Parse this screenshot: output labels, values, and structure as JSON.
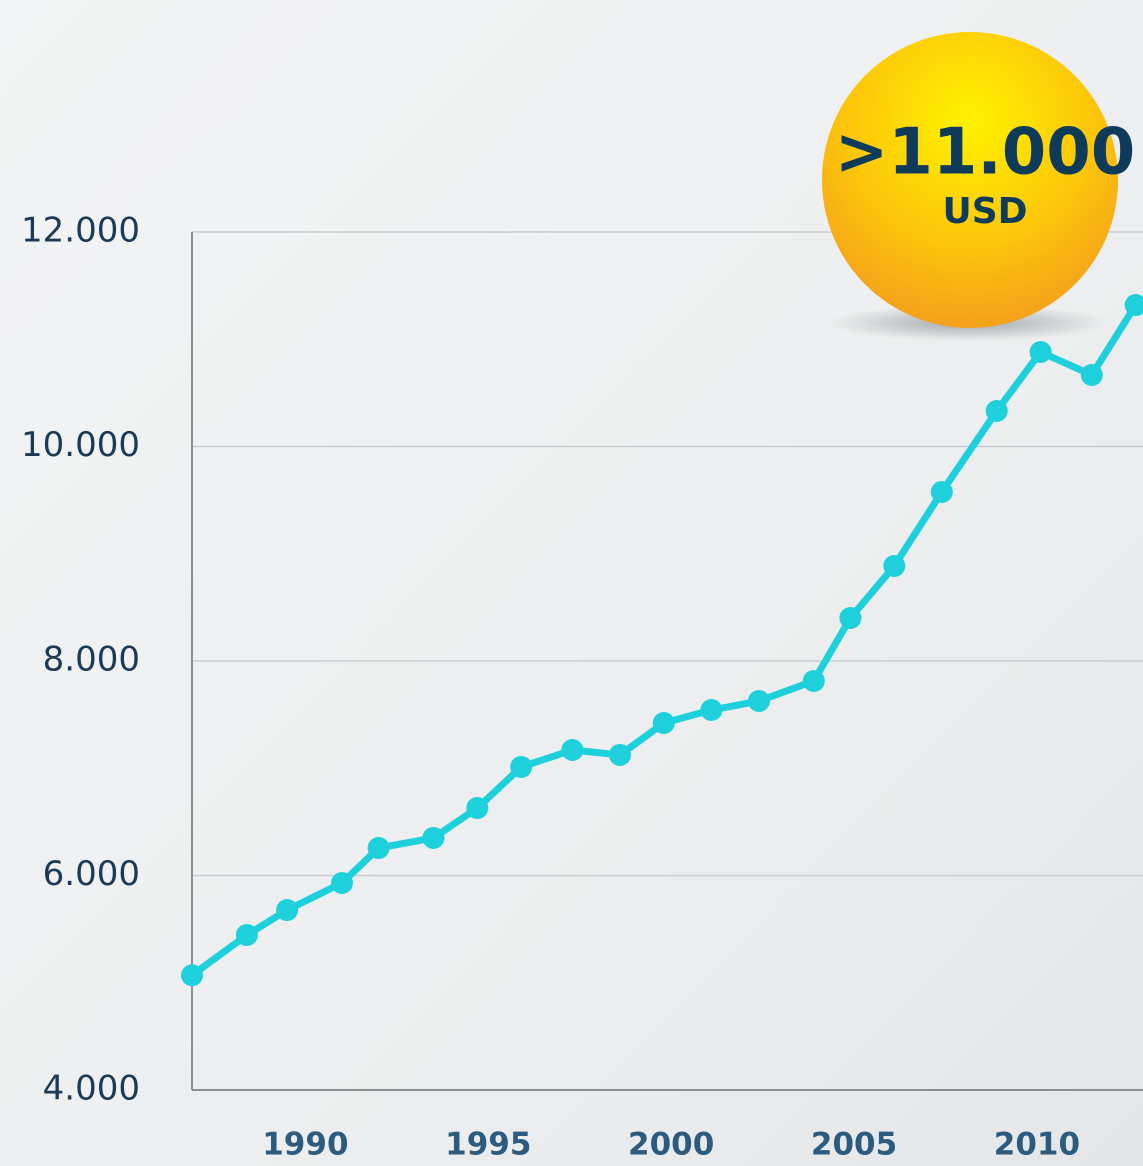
{
  "chart_data": {
    "type": "line",
    "annotation": ">11.000",
    "annotation_unit": "USD",
    "x": [
      1986.9,
      1988.4,
      1989.5,
      1991.0,
      1992.0,
      1993.5,
      1994.7,
      1995.9,
      1997.3,
      1998.6,
      1999.8,
      2001.1,
      2002.4,
      2003.9,
      2004.9,
      2006.1,
      2007.4,
      2008.9,
      2010.1,
      2011.5,
      2012.7
    ],
    "series": [
      {
        "color": "#1ed0dc",
        "values": [
          5070,
          5445,
          5678,
          5930,
          6256,
          6350,
          6629,
          7012,
          7170,
          7124,
          7422,
          7543,
          7627,
          7814,
          8401,
          8886,
          9576,
          10331,
          10881,
          10667,
          11319
        ]
      }
    ],
    "xlim": [
      1986.9,
      2012.9
    ],
    "xticks": [
      1990,
      1995,
      2000,
      2005,
      2010
    ],
    "ylim": [
      4000,
      12000
    ],
    "yticks": [
      {
        "value": 4000,
        "label": "4.000"
      },
      {
        "value": 6000,
        "label": "6.000"
      },
      {
        "value": 8000,
        "label": "8.000"
      },
      {
        "value": 10000,
        "label": "10.000"
      },
      {
        "value": 12000,
        "label": "12.000"
      }
    ],
    "grid": true
  }
}
